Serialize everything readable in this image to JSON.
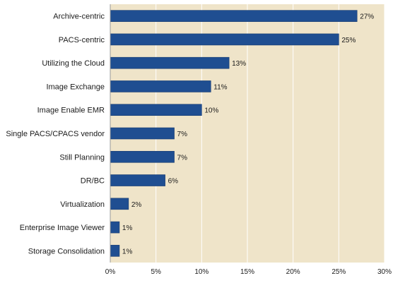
{
  "colors": {
    "plot_background": "#efe4c9",
    "bar_fill": "#1f4e91",
    "bar_stroke": "#163a6e",
    "gridline": "#ffffff",
    "axis": "#9a9a9a"
  },
  "chart_data": {
    "type": "bar",
    "orientation": "horizontal",
    "title": "",
    "xlabel": "",
    "ylabel": "",
    "categories": [
      "Archive-centric",
      "PACS-centric",
      "Utilizing the Cloud",
      "Image Exchange",
      "Image Enable EMR",
      "Single PACS/CPACS vendor",
      "Still Planning",
      "DR/BC",
      "Virtualization",
      "Enterprise Image Viewer",
      "Storage Consolidation"
    ],
    "values": [
      27,
      25,
      13,
      11,
      10,
      7,
      7,
      6,
      2,
      1,
      1
    ],
    "value_labels": [
      "27%",
      "25%",
      "13%",
      "11%",
      "10%",
      "7%",
      "7%",
      "6%",
      "2%",
      "1%",
      "1%"
    ],
    "xlim": [
      0,
      30
    ],
    "x_ticks": [
      0,
      5,
      10,
      15,
      20,
      25,
      30
    ],
    "x_tick_labels": [
      "0%",
      "5%",
      "10%",
      "15%",
      "20%",
      "25%",
      "30%"
    ],
    "grid": "vertical",
    "legend": "none"
  }
}
